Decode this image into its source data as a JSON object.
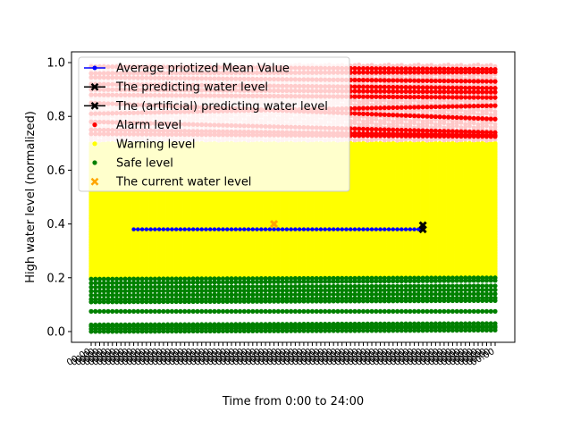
{
  "chart_data": {
    "type": "scatter",
    "title": "",
    "xlabel": "Time from 0:00 to 24:00",
    "ylabel": "High water level (normalized)",
    "ylim": [
      -0.04,
      1.04
    ],
    "yticks": [
      "0.0",
      "0.2",
      "0.4",
      "0.6",
      "0.8",
      "1.0"
    ],
    "x_tick_count": 96,
    "x_tick_label": "00:00",
    "legend_placement": "upper-left",
    "colors": {
      "mean": "#0000ff",
      "predict": "#000000",
      "alarm": "#ff0000",
      "warning": "#ffff00",
      "safe": "#008000",
      "current": "#ffa500",
      "alarm_faded": "#ffc8c8"
    },
    "series": [
      {
        "name": "Average priotized Mean Value",
        "kind": "line",
        "x_range": [
          10,
          78
        ],
        "y": 0.38
      },
      {
        "name": "The predicting water level",
        "kind": "marker-line",
        "points": [
          {
            "x": 78,
            "y": 0.38
          }
        ]
      },
      {
        "name": "The (artificial) predicting water level",
        "kind": "marker-line",
        "points": [
          {
            "x": 78,
            "y": 0.395
          }
        ]
      },
      {
        "name": "Alarm level",
        "kind": "scatter-band",
        "bands": [
          {
            "y_start": 0.985,
            "y_end": 0.975
          },
          {
            "y_start": 0.96,
            "y_end": 0.965
          },
          {
            "y_start": 0.945,
            "y_end": 0.93
          },
          {
            "y_start": 0.92,
            "y_end": 0.905
          },
          {
            "y_start": 0.9,
            "y_end": 0.89
          },
          {
            "y_start": 0.88,
            "y_end": 0.87
          },
          {
            "y_start": 0.85,
            "y_end": 0.79
          },
          {
            "y_start": 0.81,
            "y_end": 0.84
          },
          {
            "y_start": 0.78,
            "y_end": 0.74
          },
          {
            "y_start": 0.75,
            "y_end": 0.73
          },
          {
            "y_start": 0.735,
            "y_end": 0.725
          }
        ]
      },
      {
        "name": "Warning level",
        "kind": "scatter-fill",
        "y_range": [
          0.2,
          0.7
        ]
      },
      {
        "name": "Safe level",
        "kind": "scatter-band",
        "bands": [
          {
            "y_start": 0.195,
            "y_end": 0.2
          },
          {
            "y_start": 0.18,
            "y_end": 0.19
          },
          {
            "y_start": 0.165,
            "y_end": 0.17
          },
          {
            "y_start": 0.15,
            "y_end": 0.155
          },
          {
            "y_start": 0.135,
            "y_end": 0.14
          },
          {
            "y_start": 0.12,
            "y_end": 0.125
          },
          {
            "y_start": 0.11,
            "y_end": 0.115
          },
          {
            "y_start": 0.075,
            "y_end": 0.075
          },
          {
            "y_start": 0.025,
            "y_end": 0.03
          },
          {
            "y_start": 0.02,
            "y_end": 0.02
          },
          {
            "y_start": 0.01,
            "y_end": 0.015
          },
          {
            "y_start": 0.0,
            "y_end": 0.005
          }
        ]
      },
      {
        "name": "The current water level",
        "kind": "marker",
        "points": [
          {
            "x": 43,
            "y": 0.4
          }
        ]
      }
    ]
  }
}
